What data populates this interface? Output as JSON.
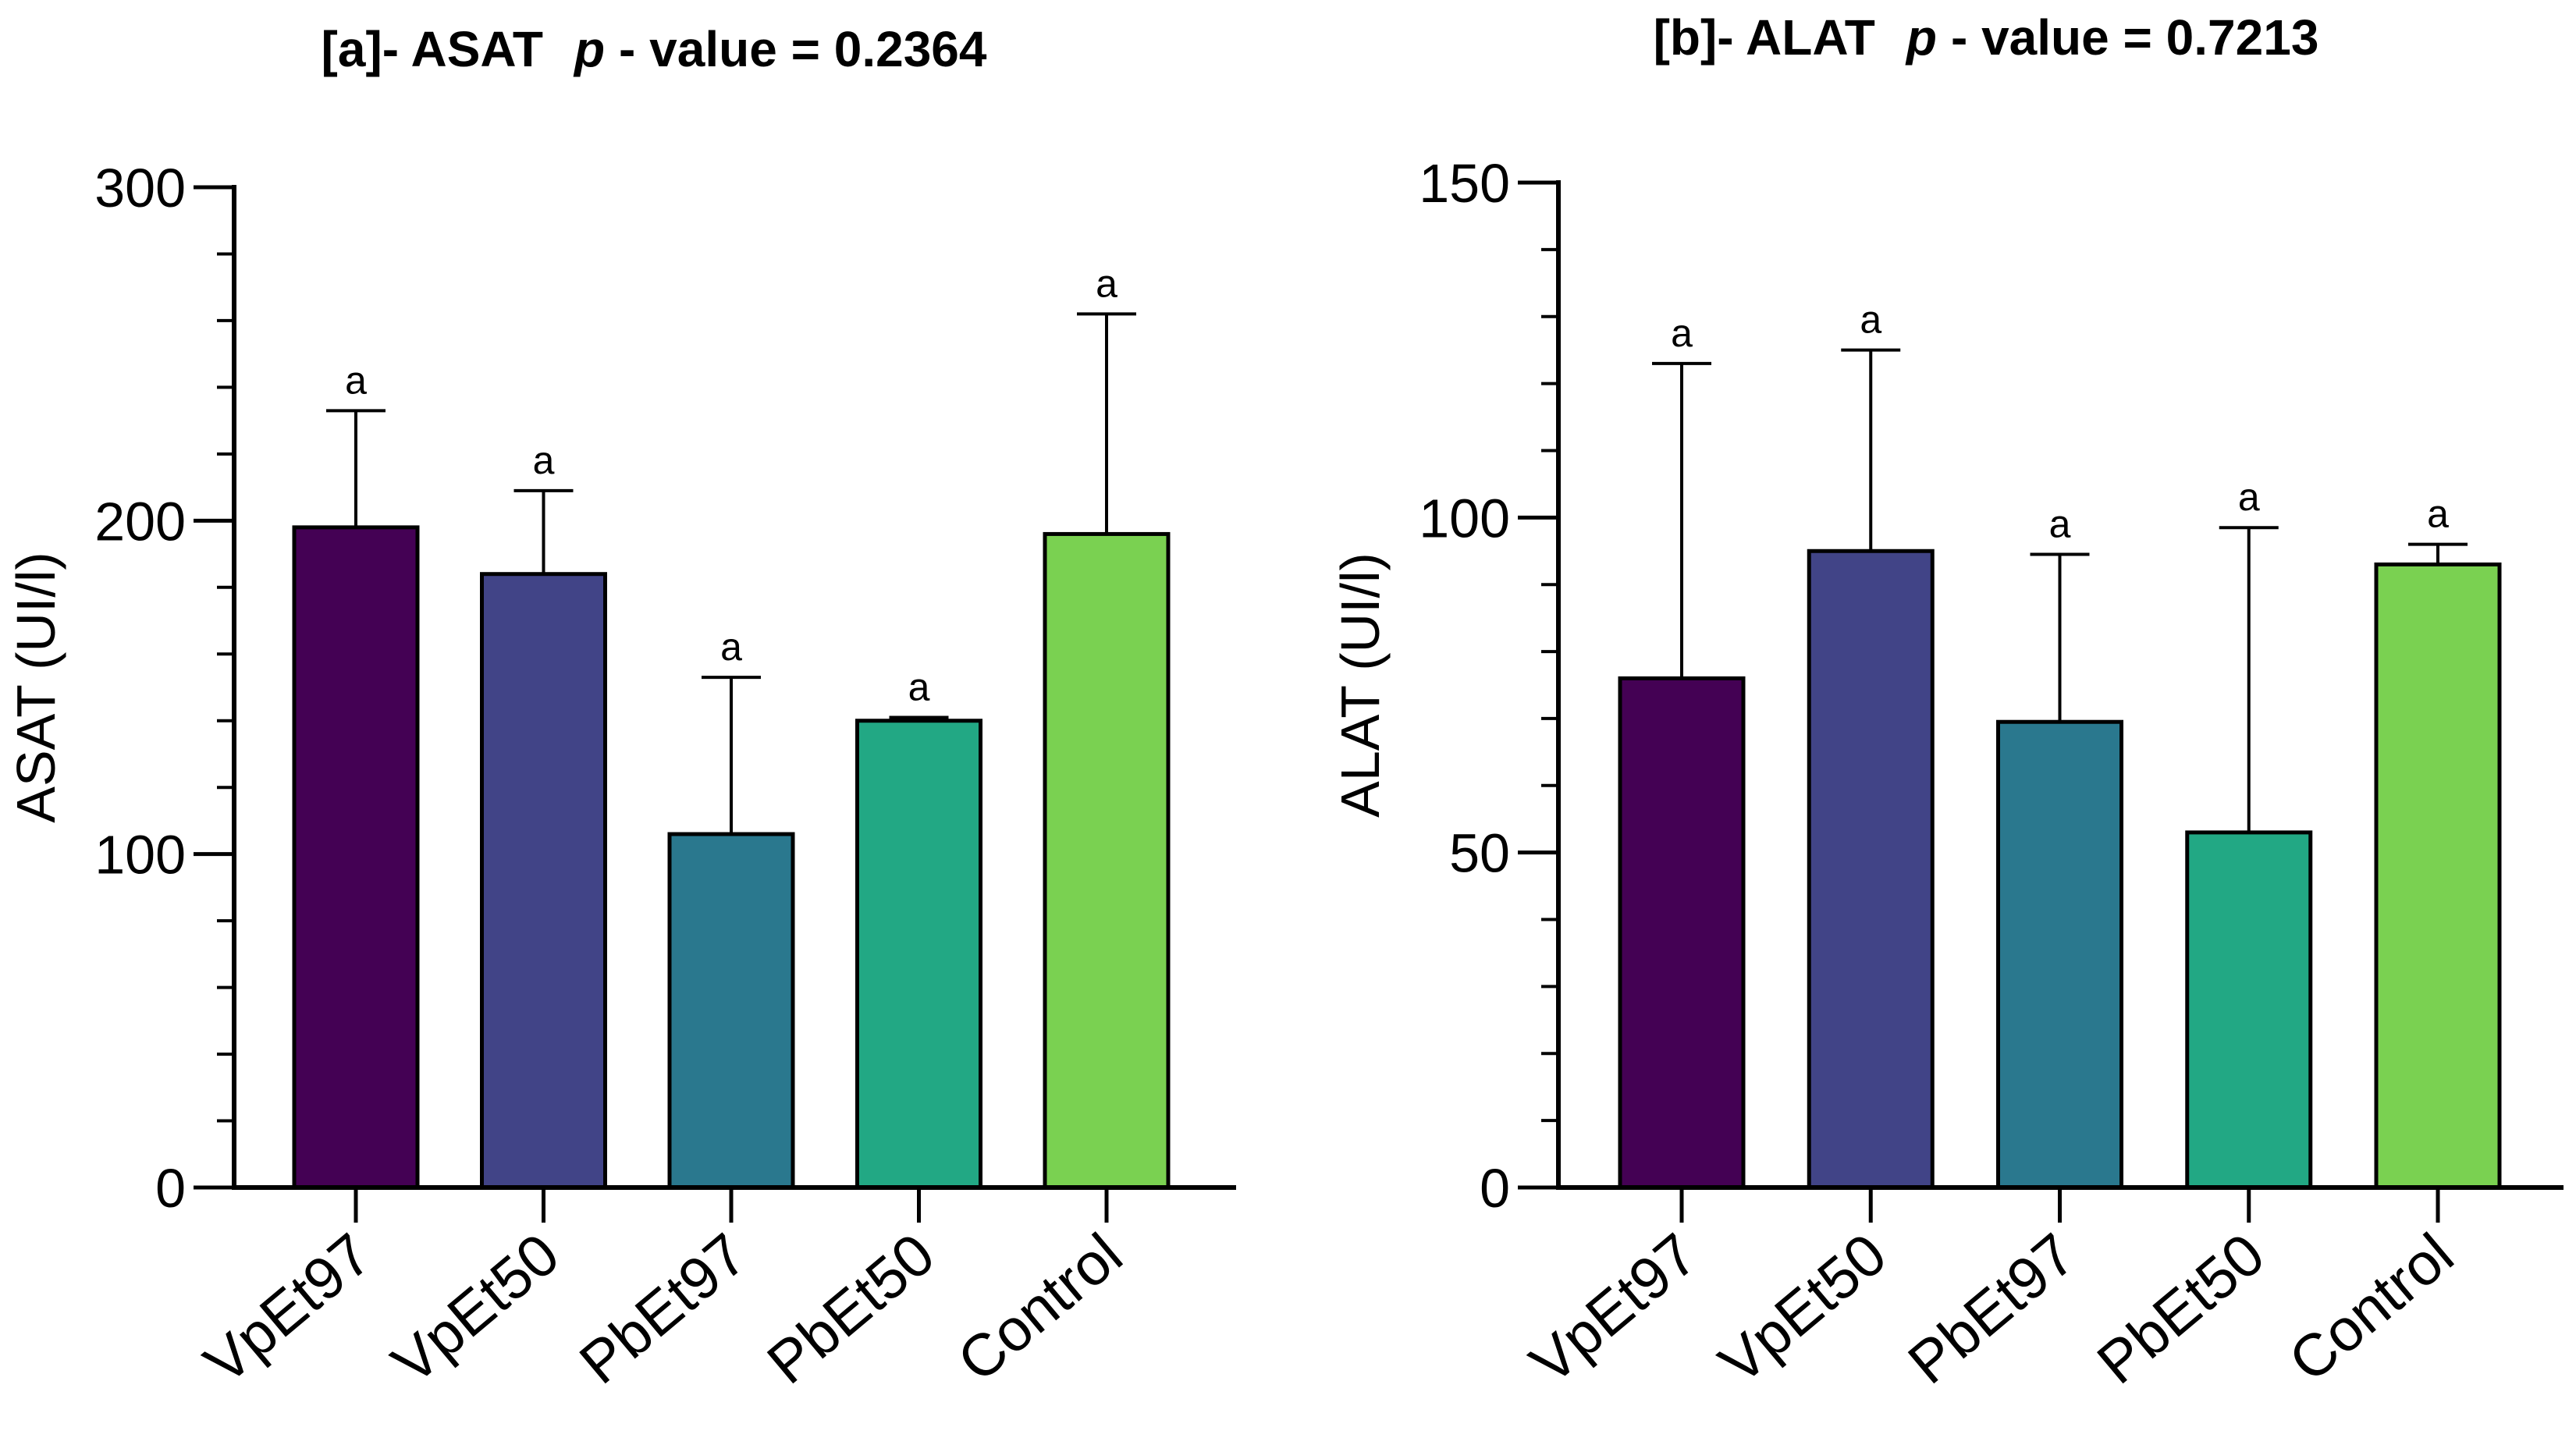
{
  "chart_data": [
    {
      "type": "bar",
      "panel_tag": "[a]- ASAT",
      "p_letter": "p",
      "p_text": "- value = 0.2364",
      "ylabel": "ASAT (UI/l)",
      "xlabel": "",
      "ylim": [
        0,
        300
      ],
      "yticks": [
        0,
        100,
        200,
        300
      ],
      "minor_step": 20,
      "categories": [
        "VpEt97",
        "VpEt50",
        "PbEt97",
        "PbEt50",
        "Control"
      ],
      "values": [
        198,
        184,
        106,
        140,
        196
      ],
      "error_upper": [
        233,
        209,
        153,
        141,
        262
      ],
      "significance": [
        "a",
        "a",
        "a",
        "a",
        "a"
      ],
      "colors": [
        "#440154",
        "#414487",
        "#2a788e",
        "#22a884",
        "#7ad151"
      ],
      "grid": false,
      "legend": "none"
    },
    {
      "type": "bar",
      "panel_tag": "[b]- ALAT",
      "p_letter": "p",
      "p_text": "- value = 0.7213",
      "ylabel": "ALAT (UI/l)",
      "xlabel": "",
      "ylim": [
        0,
        150
      ],
      "yticks": [
        0,
        50,
        100,
        150
      ],
      "minor_step": 10,
      "categories": [
        "VpEt97",
        "VpEt50",
        "PbEt97",
        "PbEt50",
        "Control"
      ],
      "values": [
        76,
        95,
        69.5,
        53,
        93
      ],
      "error_upper": [
        123,
        125,
        94.5,
        98.5,
        96
      ],
      "significance": [
        "a",
        "a",
        "a",
        "a",
        "a"
      ],
      "colors": [
        "#440154",
        "#414487",
        "#2a788e",
        "#22a884",
        "#7ad151"
      ],
      "grid": false,
      "legend": "none"
    }
  ]
}
